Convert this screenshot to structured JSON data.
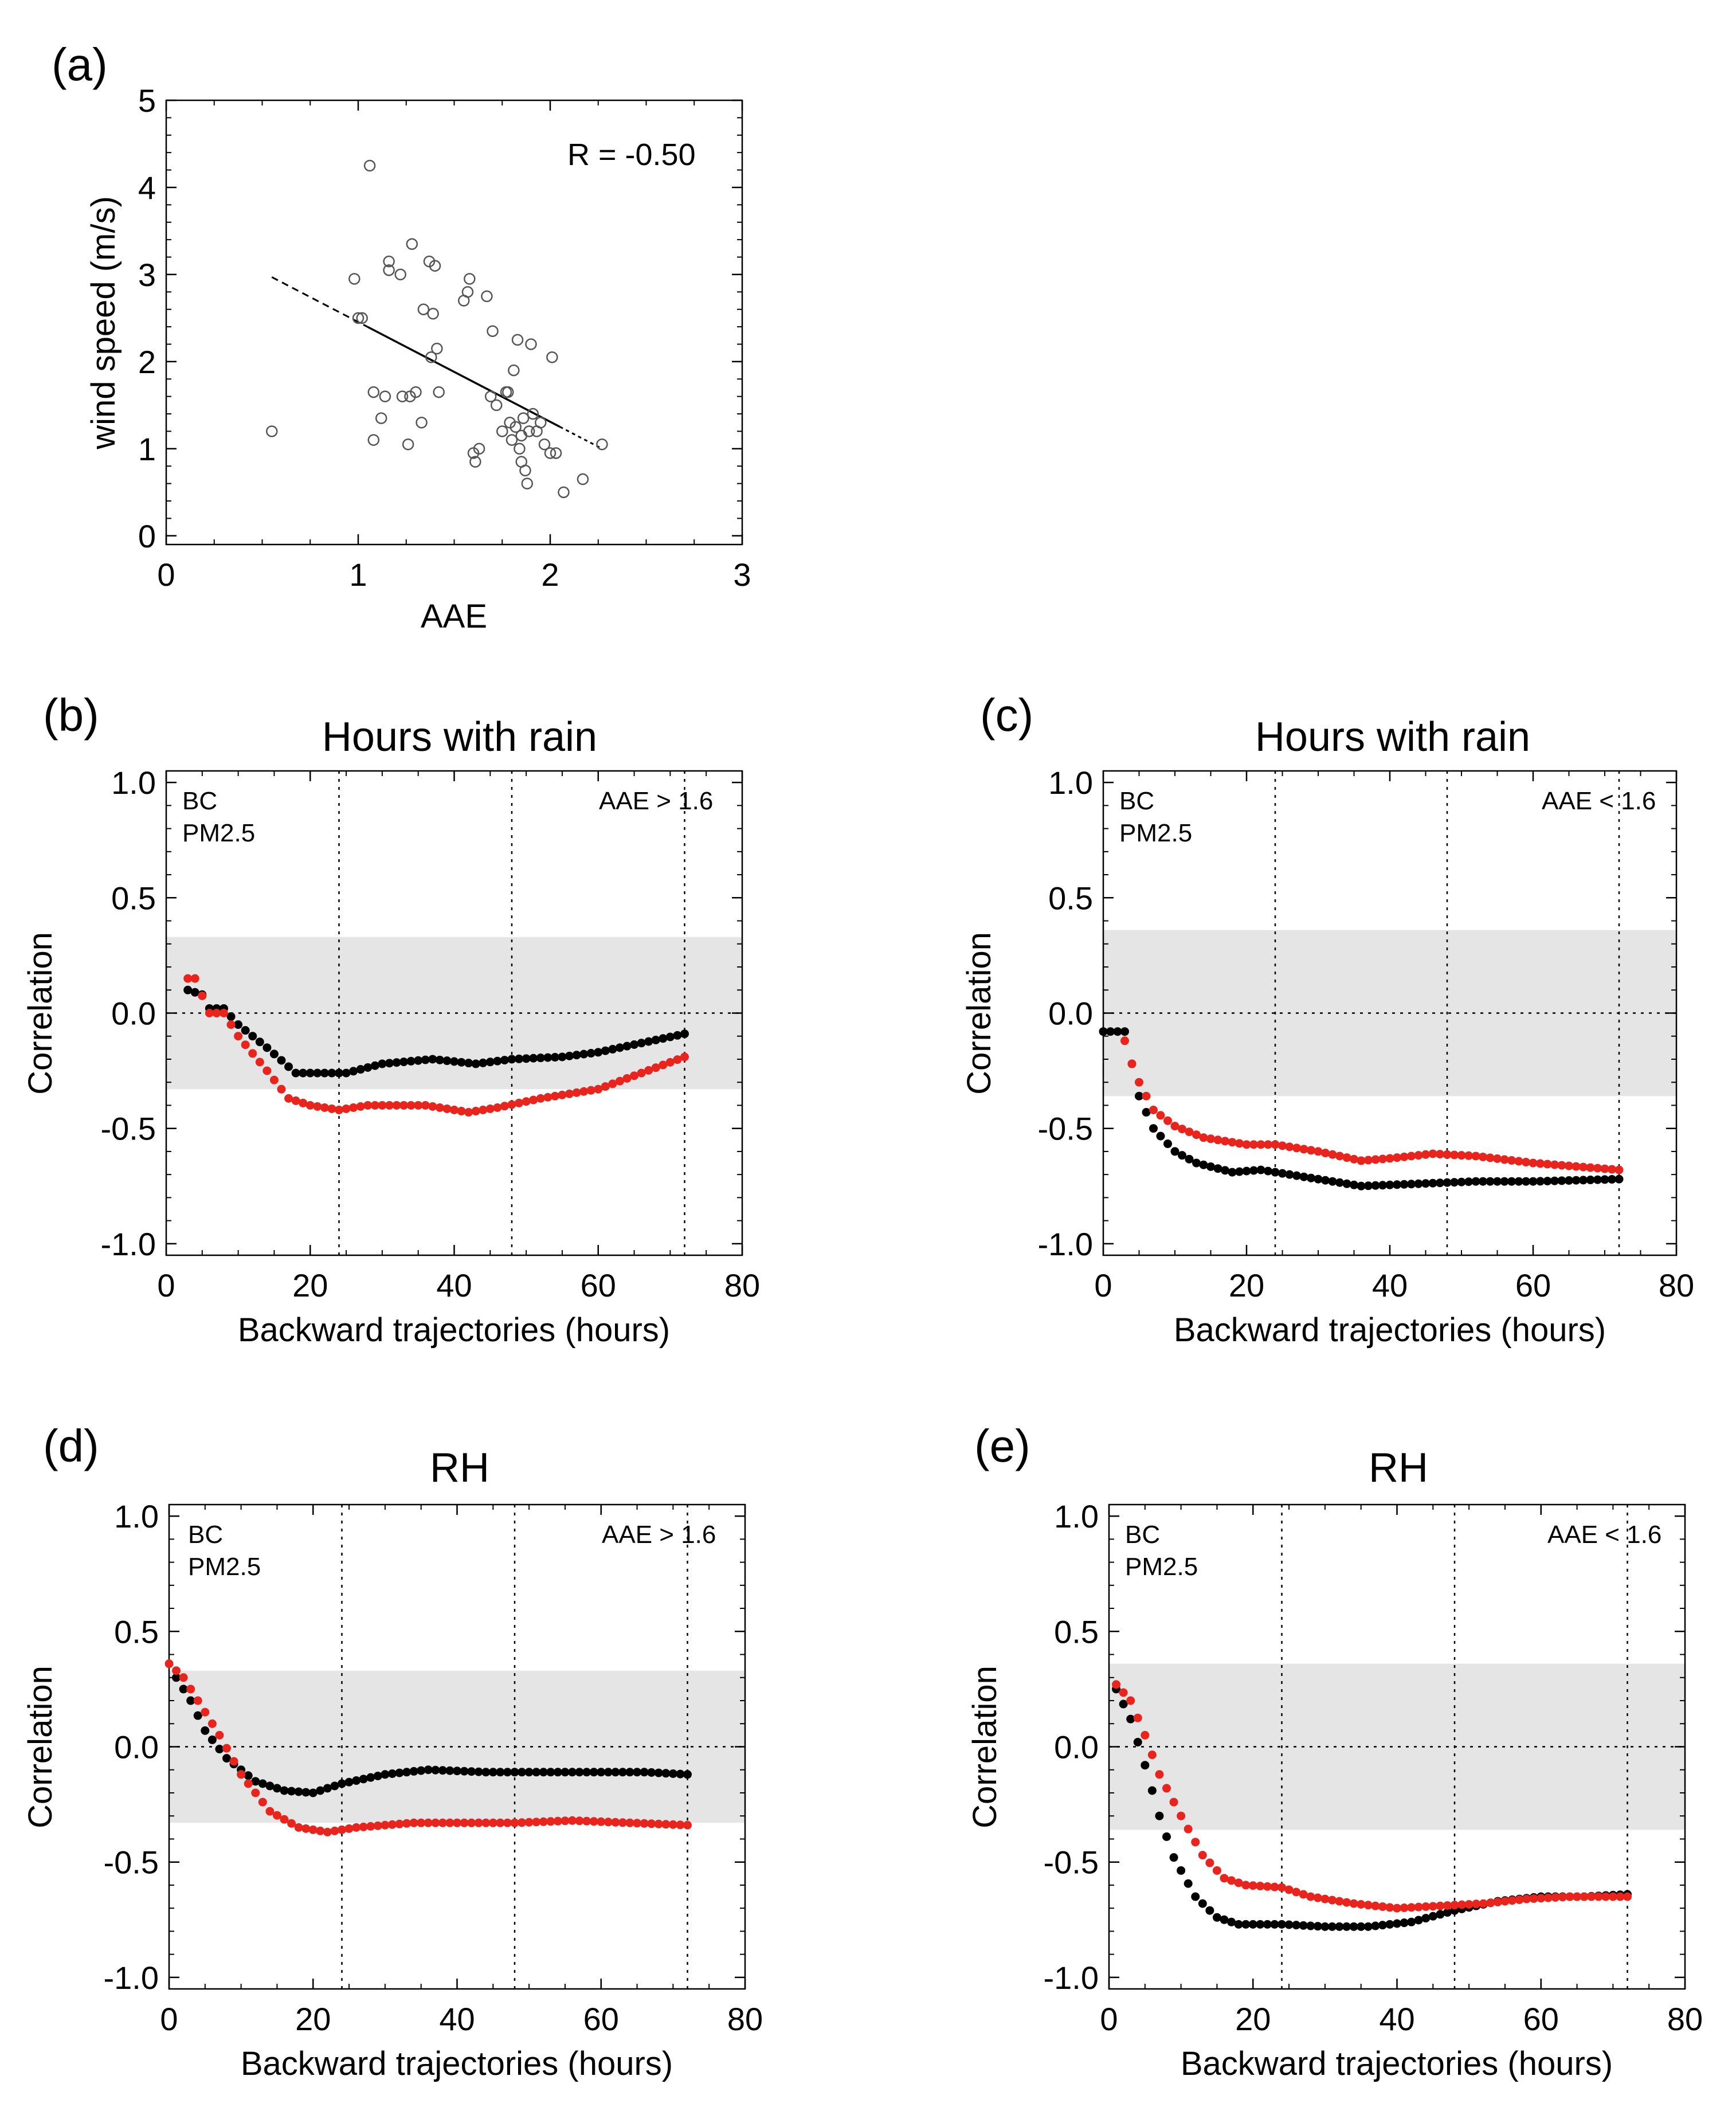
{
  "panels": [
    {
      "id": "a",
      "letter": "(a)",
      "type": "scatter",
      "title": "",
      "xlabel": "AAE",
      "ylabel": "wind speed (m/s)",
      "xlim": [
        0,
        3
      ],
      "ylim": [
        -0.1,
        5
      ],
      "xticks": [
        "0",
        "1",
        "2",
        "3"
      ],
      "yticks": [
        "0",
        "1",
        "2",
        "3",
        "4",
        "5"
      ],
      "annotation": "R = -0.50",
      "points": [
        [
          0.55,
          1.2
        ],
        [
          0.98,
          2.95
        ],
        [
          1.0,
          2.5
        ],
        [
          1.02,
          2.5
        ],
        [
          1.06,
          4.25
        ],
        [
          1.08,
          1.65
        ],
        [
          1.08,
          1.1
        ],
        [
          1.12,
          1.35
        ],
        [
          1.14,
          1.6
        ],
        [
          1.16,
          3.15
        ],
        [
          1.16,
          3.05
        ],
        [
          1.22,
          3.0
        ],
        [
          1.23,
          1.6
        ],
        [
          1.26,
          1.05
        ],
        [
          1.27,
          1.6
        ],
        [
          1.28,
          3.35
        ],
        [
          1.3,
          1.65
        ],
        [
          1.33,
          1.3
        ],
        [
          1.34,
          2.6
        ],
        [
          1.37,
          3.15
        ],
        [
          1.38,
          2.05
        ],
        [
          1.39,
          2.55
        ],
        [
          1.4,
          3.1
        ],
        [
          1.41,
          2.15
        ],
        [
          1.42,
          1.65
        ],
        [
          1.55,
          2.7
        ],
        [
          1.57,
          2.8
        ],
        [
          1.58,
          2.95
        ],
        [
          1.6,
          0.95
        ],
        [
          1.61,
          0.85
        ],
        [
          1.63,
          1.0
        ],
        [
          1.67,
          2.75
        ],
        [
          1.69,
          1.6
        ],
        [
          1.7,
          2.35
        ],
        [
          1.72,
          1.5
        ],
        [
          1.75,
          1.2
        ],
        [
          1.77,
          1.65
        ],
        [
          1.78,
          1.65
        ],
        [
          1.79,
          1.3
        ],
        [
          1.8,
          1.1
        ],
        [
          1.81,
          1.9
        ],
        [
          1.82,
          1.25
        ],
        [
          1.83,
          2.25
        ],
        [
          1.84,
          1.0
        ],
        [
          1.85,
          0.85
        ],
        [
          1.85,
          1.15
        ],
        [
          1.86,
          1.35
        ],
        [
          1.87,
          0.75
        ],
        [
          1.88,
          0.6
        ],
        [
          1.89,
          1.2
        ],
        [
          1.9,
          2.2
        ],
        [
          1.91,
          1.4
        ],
        [
          1.93,
          1.2
        ],
        [
          1.95,
          1.3
        ],
        [
          1.97,
          1.05
        ],
        [
          2.0,
          0.95
        ],
        [
          2.01,
          2.05
        ],
        [
          2.03,
          0.95
        ],
        [
          2.07,
          0.5
        ],
        [
          2.17,
          0.65
        ],
        [
          2.27,
          1.05
        ]
      ],
      "fit_line": {
        "x": [
          0.55,
          2.27
        ],
        "y": [
          2.97,
          1.0
        ],
        "solid_range": [
          1.05,
          2.05
        ]
      }
    },
    {
      "id": "b",
      "letter": "(b)",
      "type": "scatter",
      "title": "Hours with rain",
      "xlabel": "Backward trajectories (hours)",
      "ylabel": "Correlation",
      "xlim": [
        0,
        80
      ],
      "ylim": [
        -1.05,
        1.05
      ],
      "xticks": [
        "0",
        "20",
        "40",
        "60",
        "80"
      ],
      "yticks": [
        "-1.0",
        "-0.5",
        "0.0",
        "0.5",
        "1.0"
      ],
      "annotation": "AAE > 1.6",
      "band": [
        -0.33,
        0.33
      ],
      "vlines": [
        24,
        48,
        72
      ],
      "legend": [
        {
          "label": "BC",
          "color": "#000000"
        },
        {
          "label": "PM2.5",
          "color": "#e8241c"
        }
      ],
      "series": [
        {
          "name": "BC",
          "color": "#000000",
          "knots": [
            [
              3,
              0.1
            ],
            [
              5,
              0.08
            ],
            [
              6,
              0.02
            ],
            [
              8,
              0.02
            ],
            [
              10,
              -0.05
            ],
            [
              14,
              -0.15
            ],
            [
              18,
              -0.26
            ],
            [
              22,
              -0.26
            ],
            [
              25,
              -0.26
            ],
            [
              30,
              -0.22
            ],
            [
              37,
              -0.2
            ],
            [
              43,
              -0.22
            ],
            [
              48,
              -0.2
            ],
            [
              55,
              -0.19
            ],
            [
              60,
              -0.17
            ],
            [
              66,
              -0.13
            ],
            [
              72,
              -0.09
            ]
          ]
        },
        {
          "name": "PM2.5",
          "color": "#e8241c",
          "knots": [
            [
              3,
              0.15
            ],
            [
              4,
              0.15
            ],
            [
              6,
              0.0
            ],
            [
              8,
              0.0
            ],
            [
              10,
              -0.1
            ],
            [
              14,
              -0.25
            ],
            [
              17,
              -0.37
            ],
            [
              20,
              -0.4
            ],
            [
              24,
              -0.42
            ],
            [
              28,
              -0.4
            ],
            [
              36,
              -0.4
            ],
            [
              42,
              -0.43
            ],
            [
              46,
              -0.41
            ],
            [
              52,
              -0.37
            ],
            [
              60,
              -0.33
            ],
            [
              66,
              -0.26
            ],
            [
              72,
              -0.19
            ]
          ]
        }
      ]
    },
    {
      "id": "c",
      "letter": "(c)",
      "type": "scatter",
      "title": "Hours with rain",
      "xlabel": "Backward trajectories (hours)",
      "ylabel": "Correlation",
      "xlim": [
        0,
        80
      ],
      "ylim": [
        -1.05,
        1.05
      ],
      "xticks": [
        "0",
        "20",
        "40",
        "60",
        "80"
      ],
      "yticks": [
        "-1.0",
        "-0.5",
        "0.0",
        "0.5",
        "1.0"
      ],
      "annotation": "AAE < 1.6",
      "band": [
        -0.36,
        0.36
      ],
      "vlines": [
        24,
        48,
        72
      ],
      "legend": [
        {
          "label": "BC",
          "color": "#000000"
        },
        {
          "label": "PM2.5",
          "color": "#e8241c"
        }
      ],
      "series": [
        {
          "name": "BC",
          "color": "#000000",
          "knots": [
            [
              0,
              -0.08
            ],
            [
              3,
              -0.08
            ],
            [
              4,
              -0.22
            ],
            [
              5,
              -0.36
            ],
            [
              7,
              -0.5
            ],
            [
              10,
              -0.6
            ],
            [
              13,
              -0.65
            ],
            [
              18,
              -0.69
            ],
            [
              22,
              -0.68
            ],
            [
              28,
              -0.71
            ],
            [
              36,
              -0.75
            ],
            [
              44,
              -0.74
            ],
            [
              52,
              -0.73
            ],
            [
              60,
              -0.73
            ],
            [
              72,
              -0.72
            ]
          ]
        },
        {
          "name": "PM2.5",
          "color": "#e8241c",
          "knots": [
            [
              3,
              -0.12
            ],
            [
              4,
              -0.22
            ],
            [
              5,
              -0.3
            ],
            [
              7,
              -0.42
            ],
            [
              10,
              -0.49
            ],
            [
              14,
              -0.54
            ],
            [
              20,
              -0.57
            ],
            [
              24,
              -0.57
            ],
            [
              30,
              -0.6
            ],
            [
              36,
              -0.64
            ],
            [
              40,
              -0.63
            ],
            [
              46,
              -0.61
            ],
            [
              52,
              -0.62
            ],
            [
              60,
              -0.65
            ],
            [
              72,
              -0.68
            ]
          ]
        }
      ]
    },
    {
      "id": "d",
      "letter": "(d)",
      "type": "scatter",
      "title": "RH",
      "xlabel": "Backward trajectories (hours)",
      "ylabel": "Correlation",
      "xlim": [
        0,
        80
      ],
      "ylim": [
        -1.05,
        1.05
      ],
      "xticks": [
        "0",
        "20",
        "40",
        "60",
        "80"
      ],
      "yticks": [
        "-1.0",
        "-0.5",
        "0.0",
        "0.5",
        "1.0"
      ],
      "annotation": "AAE > 1.6",
      "band": [
        -0.33,
        0.33
      ],
      "vlines": [
        24,
        48,
        72
      ],
      "legend": [
        {
          "label": "BC",
          "color": "#000000"
        },
        {
          "label": "PM2.5",
          "color": "#e8241c"
        }
      ],
      "series": [
        {
          "name": "BC",
          "color": "#000000",
          "knots": [
            [
              1,
              0.3
            ],
            [
              3,
              0.2
            ],
            [
              5,
              0.07
            ],
            [
              8,
              -0.05
            ],
            [
              12,
              -0.15
            ],
            [
              16,
              -0.19
            ],
            [
              20,
              -0.2
            ],
            [
              24,
              -0.16
            ],
            [
              30,
              -0.12
            ],
            [
              36,
              -0.1
            ],
            [
              44,
              -0.11
            ],
            [
              52,
              -0.11
            ],
            [
              60,
              -0.11
            ],
            [
              66,
              -0.11
            ],
            [
              72,
              -0.12
            ]
          ]
        },
        {
          "name": "PM2.5",
          "color": "#e8241c",
          "knots": [
            [
              0,
              0.36
            ],
            [
              2,
              0.3
            ],
            [
              4,
              0.2
            ],
            [
              7,
              0.05
            ],
            [
              10,
              -0.12
            ],
            [
              14,
              -0.28
            ],
            [
              18,
              -0.35
            ],
            [
              22,
              -0.37
            ],
            [
              26,
              -0.35
            ],
            [
              34,
              -0.33
            ],
            [
              40,
              -0.33
            ],
            [
              48,
              -0.33
            ],
            [
              56,
              -0.32
            ],
            [
              64,
              -0.33
            ],
            [
              72,
              -0.34
            ]
          ]
        }
      ]
    },
    {
      "id": "e",
      "letter": "(e)",
      "type": "scatter",
      "title": "RH",
      "xlabel": "Backward trajectories (hours)",
      "ylabel": "Correlation",
      "xlim": [
        0,
        80
      ],
      "ylim": [
        -1.05,
        1.05
      ],
      "xticks": [
        "0",
        "20",
        "40",
        "60",
        "80"
      ],
      "yticks": [
        "-1.0",
        "-0.5",
        "0.0",
        "0.5",
        "1.0"
      ],
      "annotation": "AAE < 1.6",
      "band": [
        -0.36,
        0.36
      ],
      "vlines": [
        24,
        48,
        72
      ],
      "legend": [
        {
          "label": "BC",
          "color": "#000000"
        },
        {
          "label": "PM2.5",
          "color": "#e8241c"
        }
      ],
      "series": [
        {
          "name": "BC",
          "color": "#000000",
          "knots": [
            [
              1,
              0.25
            ],
            [
              3,
              0.12
            ],
            [
              5,
              -0.08
            ],
            [
              7,
              -0.3
            ],
            [
              9,
              -0.48
            ],
            [
              12,
              -0.65
            ],
            [
              15,
              -0.74
            ],
            [
              18,
              -0.77
            ],
            [
              24,
              -0.77
            ],
            [
              30,
              -0.78
            ],
            [
              36,
              -0.78
            ],
            [
              42,
              -0.76
            ],
            [
              48,
              -0.71
            ],
            [
              54,
              -0.67
            ],
            [
              60,
              -0.65
            ],
            [
              66,
              -0.65
            ],
            [
              72,
              -0.64
            ]
          ]
        },
        {
          "name": "PM2.5",
          "color": "#e8241c",
          "knots": [
            [
              1,
              0.27
            ],
            [
              3,
              0.2
            ],
            [
              5,
              0.05
            ],
            [
              7,
              -0.12
            ],
            [
              10,
              -0.3
            ],
            [
              13,
              -0.47
            ],
            [
              16,
              -0.57
            ],
            [
              19,
              -0.6
            ],
            [
              24,
              -0.61
            ],
            [
              28,
              -0.65
            ],
            [
              34,
              -0.68
            ],
            [
              40,
              -0.7
            ],
            [
              46,
              -0.69
            ],
            [
              52,
              -0.68
            ],
            [
              58,
              -0.66
            ],
            [
              64,
              -0.65
            ],
            [
              72,
              -0.65
            ]
          ]
        }
      ]
    }
  ]
}
